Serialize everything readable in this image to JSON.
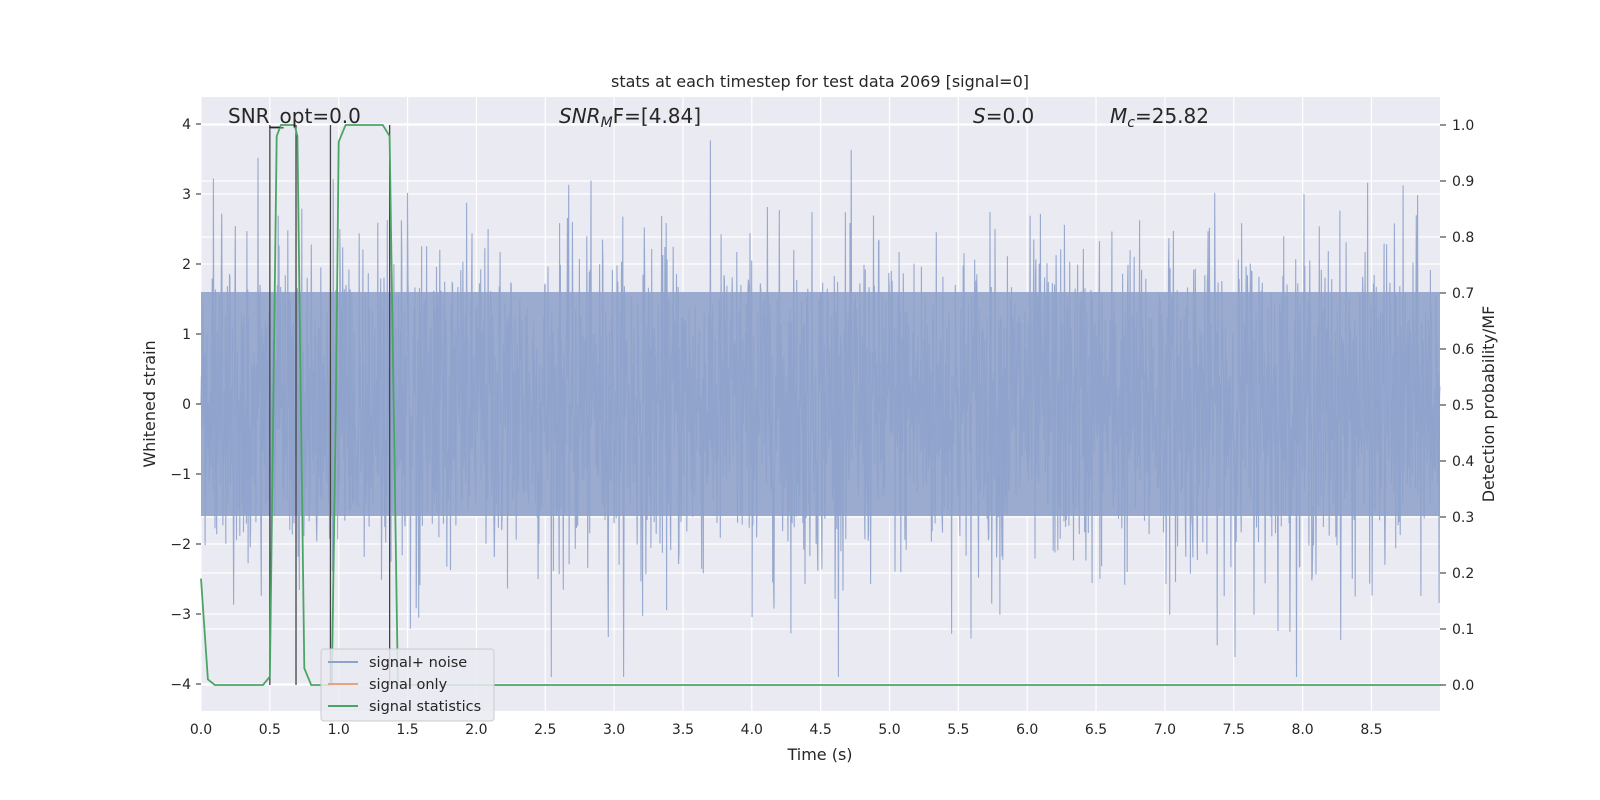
{
  "chart_data": {
    "type": "line",
    "title": "stats at each timestep for test data 2069 [signal=0]",
    "xlabel": "Time (s)",
    "ylabel": "Whitened strain",
    "y2label": "Detection probability/MF",
    "xlim": [
      0.0,
      9.0
    ],
    "ylim": [
      -4.4,
      4.4
    ],
    "y2lim": [
      -0.0477,
      1.0477
    ],
    "x_ticks": [
      "0.0",
      "0.5",
      "1.0",
      "1.5",
      "2.0",
      "2.5",
      "3.0",
      "3.5",
      "4.0",
      "4.5",
      "5.0",
      "5.5",
      "6.0",
      "6.5",
      "7.0",
      "7.5",
      "8.0",
      "8.5"
    ],
    "y_ticks": [
      "4",
      "3",
      "2",
      "1",
      "0",
      "−1",
      "−2",
      "−3",
      "−4"
    ],
    "y2_ticks": [
      "1.0",
      "0.9",
      "0.8",
      "0.7",
      "0.6",
      "0.5",
      "0.4",
      "0.3",
      "0.2",
      "0.1",
      "0.0"
    ],
    "grid": true,
    "legend_position": "lower-left",
    "annotations": {
      "snr_opt": "SNR_opt=0.0",
      "snr_mf_main": "SNR",
      "snr_mf_sub": "M",
      "snr_mf_rest": "F=[4.84]",
      "s_main": "S",
      "s_rest": "=0.0",
      "mc_main": "M",
      "mc_sub": "c",
      "mc_rest": "=25.82"
    },
    "series": [
      {
        "name": "signal+ noise",
        "color": "#8ea2cb",
        "description_envelope": "whitened noise approximately within -3.9 to 4.0 over 0 to 9 s"
      },
      {
        "name": "signal only",
        "color": "#e8a382",
        "values": []
      },
      {
        "name": "signal statistics",
        "color": "#4aa564",
        "x": [
          0.0,
          0.05,
          0.1,
          0.45,
          0.5,
          0.55,
          0.58,
          0.68,
          0.7,
          0.75,
          0.8,
          0.85,
          0.95,
          0.98,
          1.0,
          1.05,
          1.1,
          1.32,
          1.37,
          1.43,
          1.5,
          9.0
        ],
        "values": [
          0.19,
          0.01,
          0.0,
          0.0,
          0.015,
          0.98,
          1.0,
          1.0,
          0.98,
          0.03,
          0.0,
          0.0,
          0.0,
          0.5,
          0.97,
          1.0,
          1.0,
          1.0,
          0.98,
          0.0,
          0.0,
          0.0
        ]
      }
    ],
    "vertical_markers_x": [
      0.5,
      0.69,
      0.94,
      1.37
    ],
    "marker_caps_x": [
      0.5,
      0.6
    ]
  },
  "legend": {
    "items": [
      {
        "label": "signal+ noise",
        "color": "#8ea2cb"
      },
      {
        "label": "signal only",
        "color": "#e8a382"
      },
      {
        "label": "signal statistics",
        "color": "#4aa564"
      }
    ]
  }
}
